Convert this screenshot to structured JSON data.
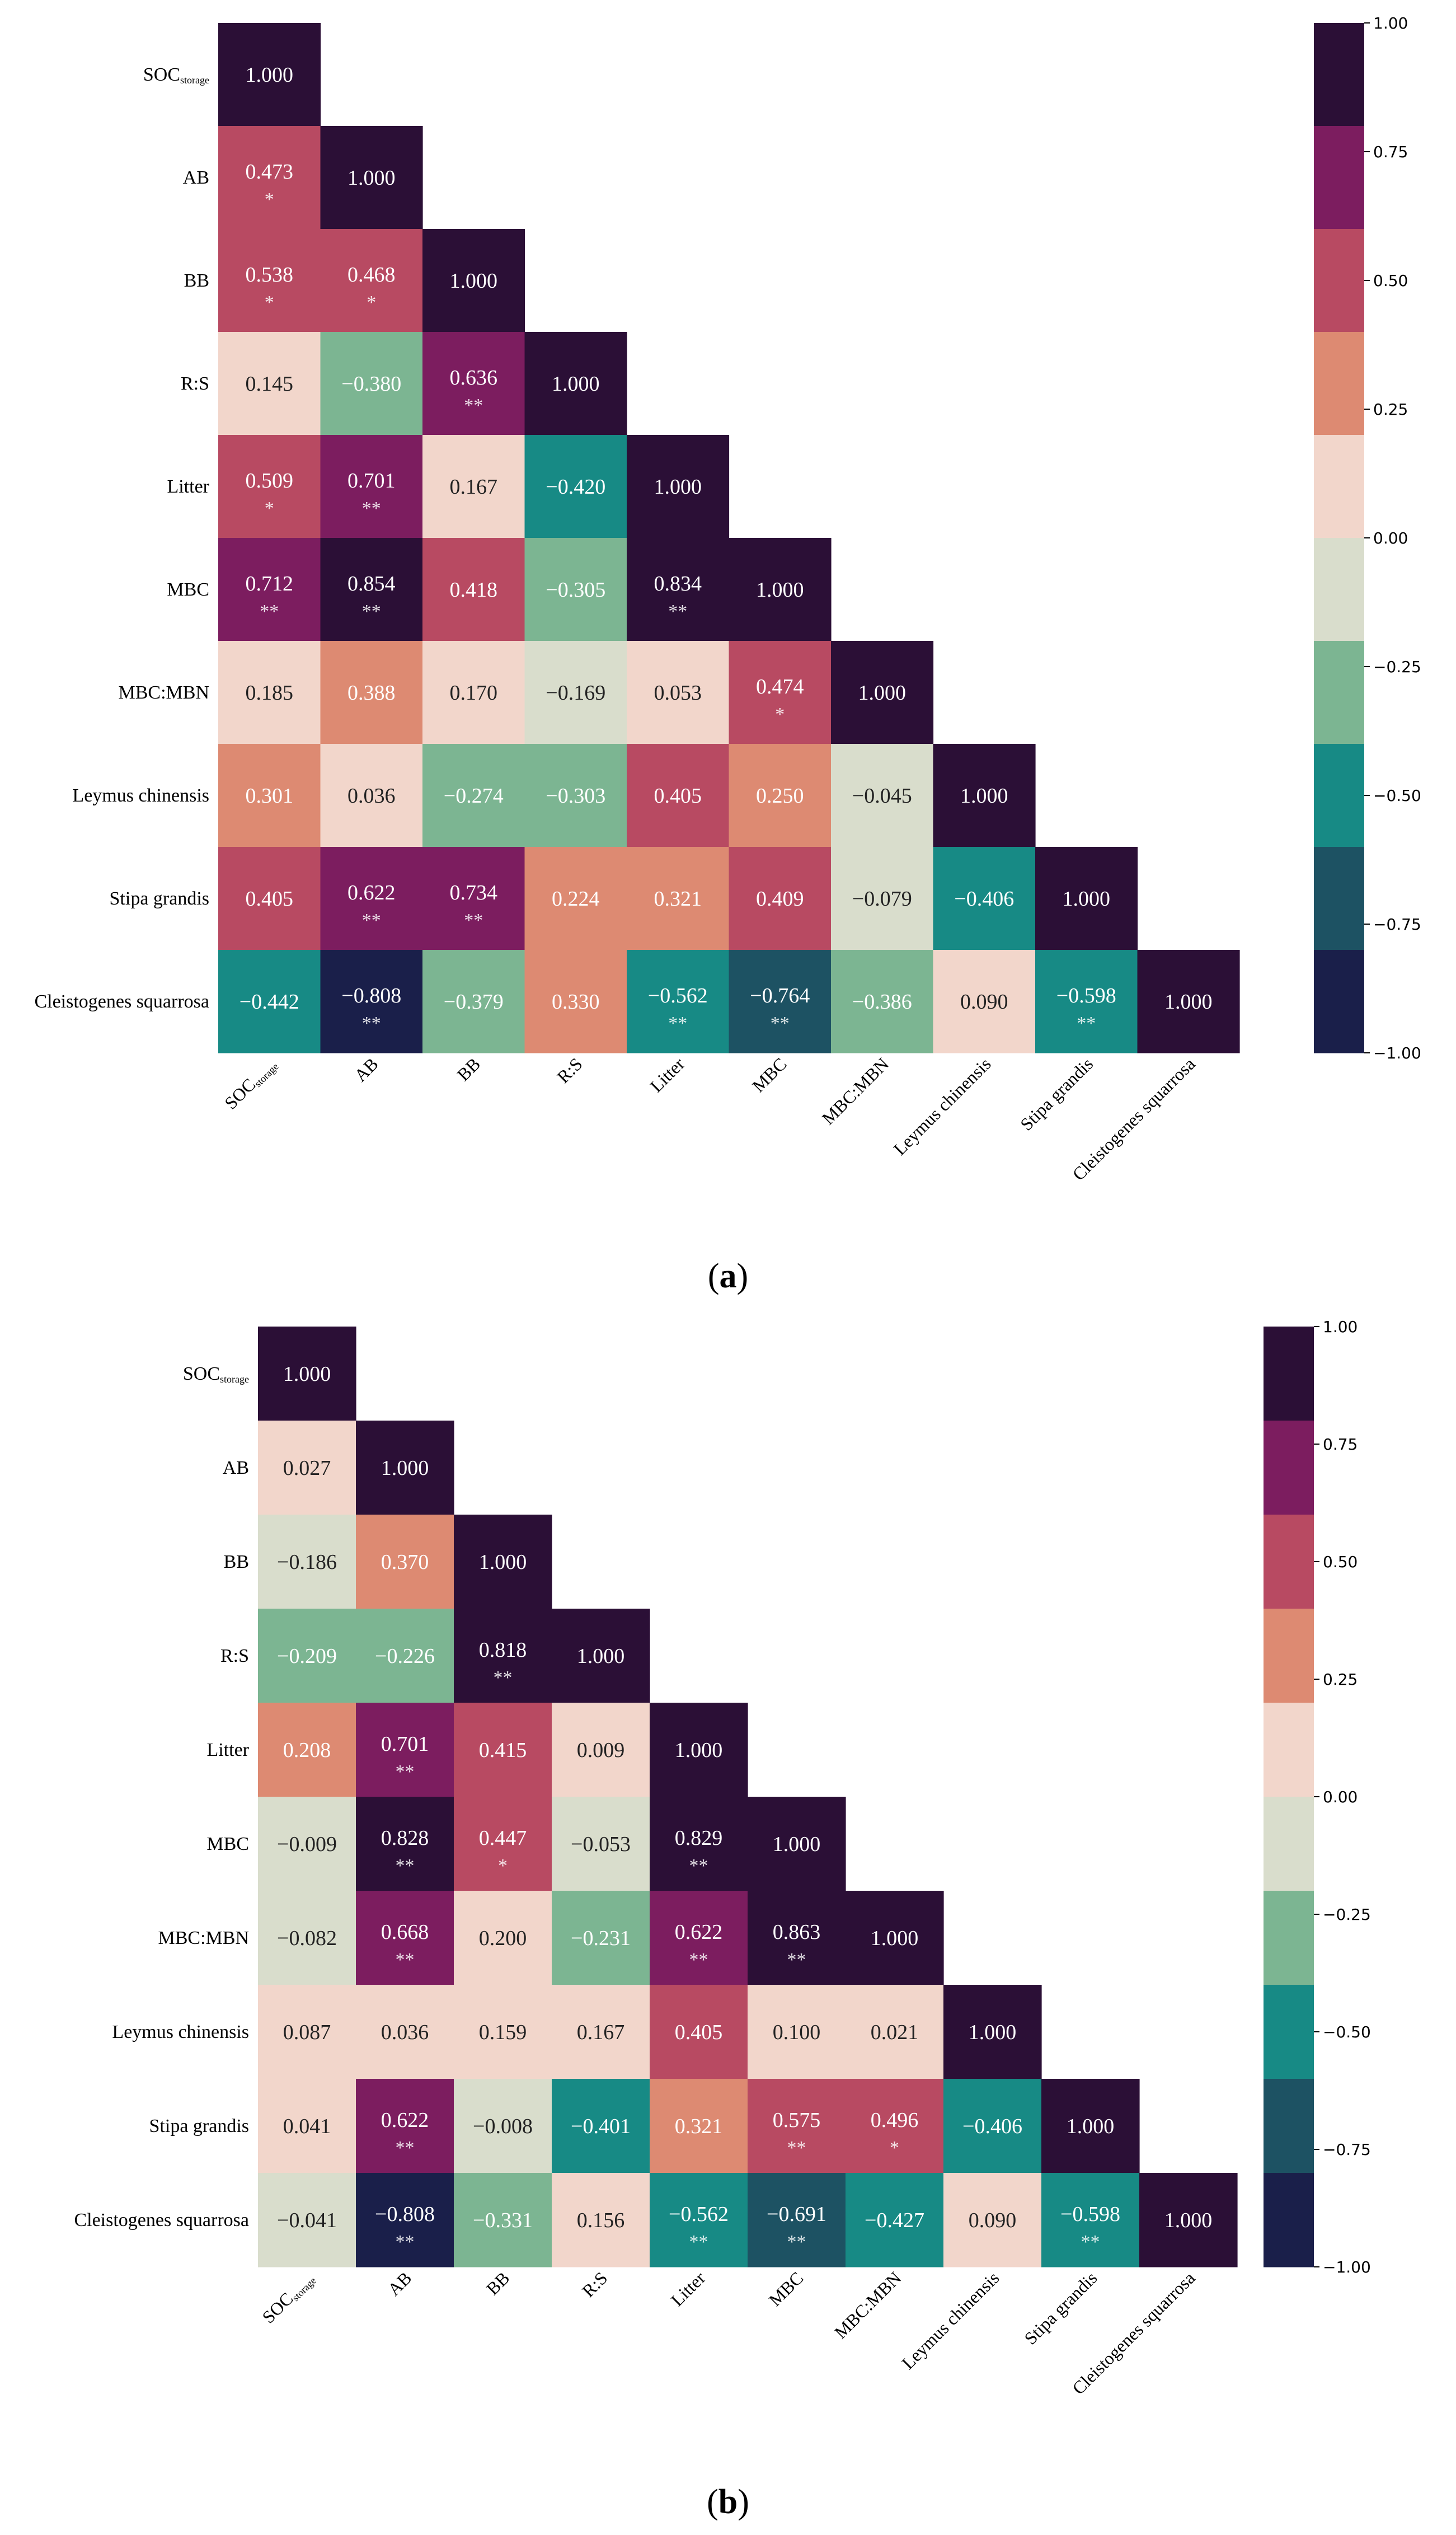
{
  "colorbar": {
    "ticks": [
      1.0,
      0.75,
      0.5,
      0.25,
      0.0,
      -0.25,
      -0.5,
      -0.75,
      -1.0
    ],
    "tick_labels": [
      "1.00",
      "0.75",
      "0.50",
      "0.25",
      "0.00",
      "−0.25",
      "−0.50",
      "−0.75",
      "−1.00"
    ],
    "colors": [
      "#2b0f36",
      "#7c1d5f",
      "#b84a62",
      "#dd8a72",
      "#f2d6cb",
      "#d9ddcc",
      "#7cb592",
      "#178a85",
      "#1d5263",
      "#1a1f4a"
    ]
  },
  "chart_data": [
    {
      "type": "heatmap",
      "panel_label": "(a)",
      "variables": [
        "SOC",
        "AB",
        "BB",
        "R:S",
        "Litter",
        "MBC",
        "MBC:MBN",
        "Leymus chinensis",
        "Stipa grandis",
        "Cleistogenes squarrosa"
      ],
      "first_label_subscript": "storage",
      "vmin": -1,
      "vmax": 1,
      "matrix": [
        [
          1.0
        ],
        [
          0.473,
          1.0
        ],
        [
          0.538,
          0.468,
          1.0
        ],
        [
          0.145,
          -0.38,
          0.636,
          1.0
        ],
        [
          0.509,
          0.701,
          0.167,
          -0.42,
          1.0
        ],
        [
          0.712,
          0.854,
          0.418,
          -0.305,
          0.834,
          1.0
        ],
        [
          0.185,
          0.388,
          0.17,
          -0.169,
          0.053,
          0.474,
          1.0
        ],
        [
          0.301,
          0.036,
          -0.274,
          -0.303,
          0.405,
          0.25,
          -0.045,
          1.0
        ],
        [
          0.405,
          0.622,
          0.734,
          0.224,
          0.321,
          0.409,
          -0.079,
          -0.406,
          1.0
        ],
        [
          -0.442,
          -0.808,
          -0.379,
          0.33,
          -0.562,
          -0.764,
          -0.386,
          0.09,
          -0.598,
          1.0
        ]
      ],
      "significance": [
        [
          ""
        ],
        [
          "*",
          ""
        ],
        [
          "*",
          "*",
          ""
        ],
        [
          "",
          "",
          "**",
          ""
        ],
        [
          "*",
          "**",
          "",
          "",
          ""
        ],
        [
          "**",
          "**",
          "",
          "",
          "**",
          ""
        ],
        [
          "",
          "",
          "",
          "",
          "",
          "*",
          ""
        ],
        [
          "",
          "",
          "",
          "",
          "",
          "",
          "",
          ""
        ],
        [
          "",
          "**",
          "**",
          "",
          "",
          "",
          "",
          "",
          ""
        ],
        [
          "",
          "**",
          "",
          "",
          "**",
          "**",
          "",
          "",
          "**",
          ""
        ]
      ]
    },
    {
      "type": "heatmap",
      "panel_label": "(b)",
      "variables": [
        "SOC",
        "AB",
        "BB",
        "R:S",
        "Litter",
        "MBC",
        "MBC:MBN",
        "Leymus chinensis",
        "Stipa grandis",
        "Cleistogenes squarrosa"
      ],
      "first_label_subscript": "storage",
      "vmin": -1,
      "vmax": 1,
      "matrix": [
        [
          1.0
        ],
        [
          0.027,
          1.0
        ],
        [
          -0.186,
          0.37,
          1.0
        ],
        [
          -0.209,
          -0.226,
          0.818,
          1.0
        ],
        [
          0.208,
          0.701,
          0.415,
          0.009,
          1.0
        ],
        [
          -0.009,
          0.828,
          0.447,
          -0.053,
          0.829,
          1.0
        ],
        [
          -0.082,
          0.668,
          0.2,
          -0.231,
          0.622,
          0.863,
          1.0
        ],
        [
          0.087,
          0.036,
          0.159,
          0.167,
          0.405,
          0.1,
          0.021,
          1.0
        ],
        [
          0.041,
          0.622,
          -0.008,
          -0.401,
          0.321,
          0.575,
          0.496,
          -0.406,
          1.0
        ],
        [
          -0.041,
          -0.808,
          -0.331,
          0.156,
          -0.562,
          -0.691,
          -0.427,
          0.09,
          -0.598,
          1.0
        ]
      ],
      "significance": [
        [
          ""
        ],
        [
          "",
          ""
        ],
        [
          "",
          "",
          ""
        ],
        [
          "",
          "",
          "**",
          ""
        ],
        [
          "",
          "**",
          "",
          "",
          ""
        ],
        [
          "",
          "**",
          "*",
          "",
          "**",
          ""
        ],
        [
          "",
          "**",
          "",
          "",
          "**",
          "**",
          ""
        ],
        [
          "",
          "",
          "",
          "",
          "",
          "",
          "",
          ""
        ],
        [
          "",
          "**",
          "",
          "",
          "",
          "**",
          "*",
          "",
          ""
        ],
        [
          "",
          "**",
          "",
          "",
          "**",
          "**",
          "",
          "",
          "**",
          ""
        ]
      ]
    }
  ]
}
